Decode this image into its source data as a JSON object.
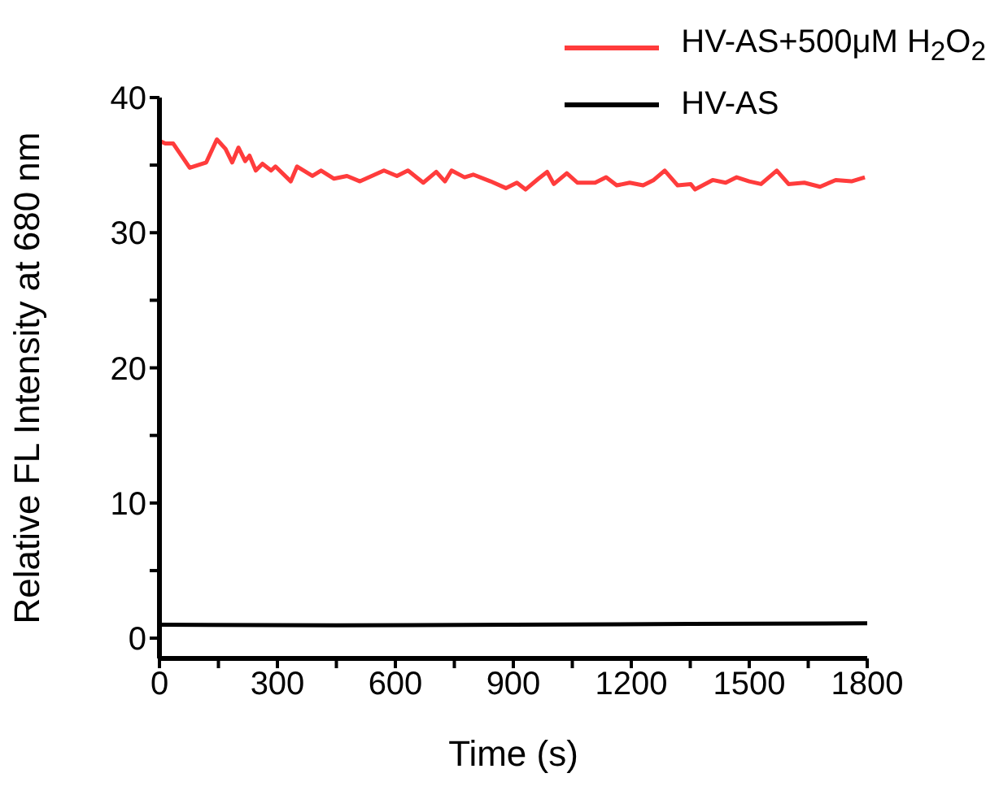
{
  "chart_data": {
    "type": "line",
    "xlabel": "Time (s)",
    "ylabel": "Relative FL Intensity at 680 nm",
    "xlim": [
      0,
      1800
    ],
    "ylim": [
      -1.5,
      40
    ],
    "xticks": [
      0,
      {
        "value": 150,
        "label": null
      },
      300,
      {
        "value": 450,
        "label": null
      },
      600,
      {
        "value": 750,
        "label": null
      },
      900,
      {
        "value": 1050,
        "label": null
      },
      1200,
      {
        "value": 1350,
        "label": null
      },
      1500,
      {
        "value": 1650,
        "label": null
      },
      1800
    ],
    "yticks": [
      0,
      {
        "value": 5,
        "label": null
      },
      10,
      {
        "value": 15,
        "label": null
      },
      20,
      {
        "value": 25,
        "label": null
      },
      30,
      {
        "value": 35,
        "label": null
      },
      40
    ],
    "grid": false,
    "legend": "top right",
    "marker": "none",
    "line_style": "solid",
    "series": [
      {
        "name": "HV-AS+500μM H$_{2}$O$_{2}$",
        "color": "#ff3c3c",
        "x": [
          0,
          15,
          35,
          77,
          119,
          146,
          168,
          185,
          201,
          218,
          229,
          245,
          262,
          284,
          295,
          334,
          350,
          389,
          411,
          444,
          477,
          510,
          571,
          604,
          632,
          671,
          704,
          726,
          743,
          776,
          798,
          842,
          881,
          909,
          931,
          964,
          986,
          1003,
          1036,
          1063,
          1108,
          1136,
          1163,
          1196,
          1230,
          1257,
          1285,
          1318,
          1351,
          1362,
          1407,
          1440,
          1468,
          1500,
          1530,
          1570,
          1600,
          1640,
          1680,
          1720,
          1760,
          1794
        ],
        "values": [
          36.8,
          36.6,
          36.6,
          34.8,
          35.2,
          36.9,
          36.2,
          35.2,
          36.3,
          35.3,
          35.7,
          34.6,
          35.1,
          34.6,
          34.9,
          33.8,
          34.9,
          34.2,
          34.6,
          34.0,
          34.2,
          33.8,
          34.6,
          34.2,
          34.6,
          33.7,
          34.5,
          33.8,
          34.6,
          34.1,
          34.3,
          33.8,
          33.3,
          33.7,
          33.2,
          34.0,
          34.5,
          33.6,
          34.4,
          33.7,
          33.7,
          34.1,
          33.5,
          33.7,
          33.5,
          33.9,
          34.6,
          33.5,
          33.6,
          33.2,
          33.9,
          33.7,
          34.1,
          33.8,
          33.6,
          34.6,
          33.6,
          33.7,
          33.4,
          33.9,
          33.8,
          34.1
        ]
      },
      {
        "name": "HV-AS",
        "color": "#000000",
        "x": [
          0,
          450,
          900,
          1350,
          1800
        ],
        "values": [
          1.0,
          0.95,
          1.0,
          1.05,
          1.1
        ]
      }
    ]
  }
}
